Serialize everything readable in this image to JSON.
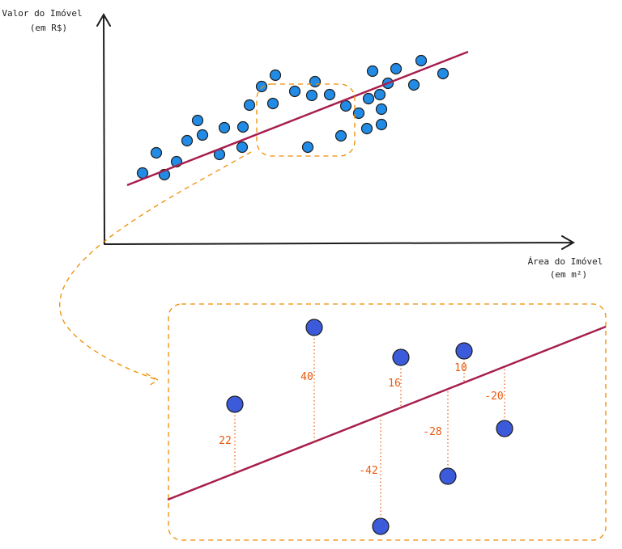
{
  "scatter": {
    "y_axis_label": [
      "Valor do Imóvel",
      "(em R$)"
    ],
    "x_axis_label": [
      "Área do Imóvel",
      "(em m²)"
    ]
  },
  "zoom": {
    "residuals": [
      22,
      40,
      16,
      -42,
      10,
      -28,
      -20
    ]
  }
}
